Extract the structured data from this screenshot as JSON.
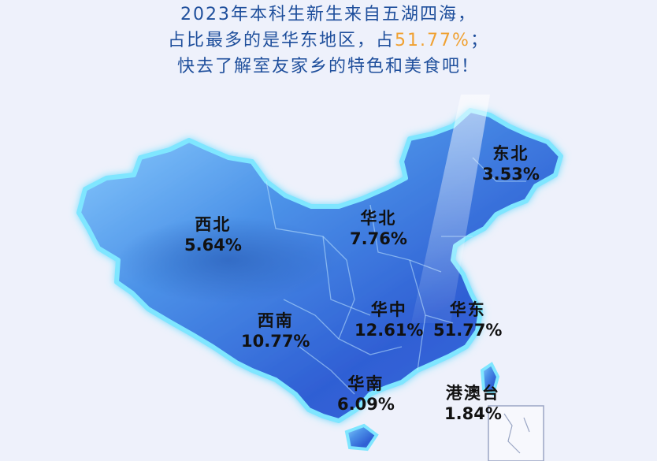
{
  "header": {
    "line1": "2023年本科生新生来自五湖四海，",
    "line2_prefix": "占比最多的是华东地区，占",
    "line2_highlight": "51.77%",
    "line2_suffix": "；",
    "line3": "快去了解室友家乡的特色和美食吧！"
  },
  "colors": {
    "accent_highlight": "#f0a132",
    "header_text": "#1f4f9c",
    "map_fill": "#3d7fe0",
    "map_glow": "#6fe0ff"
  },
  "regions": {
    "northeast": {
      "name": "东北",
      "pct": "3.53%"
    },
    "northwest": {
      "name": "西北",
      "pct": "5.64%"
    },
    "north": {
      "name": "华北",
      "pct": "7.76%"
    },
    "central": {
      "name": "华中",
      "pct": "12.61%"
    },
    "east": {
      "name": "华东",
      "pct": "51.77%"
    },
    "southwest": {
      "name": "西南",
      "pct": "10.77%"
    },
    "south": {
      "name": "华南",
      "pct": "6.09%"
    },
    "hmt": {
      "name": "港澳台",
      "pct": "1.84%"
    }
  }
}
